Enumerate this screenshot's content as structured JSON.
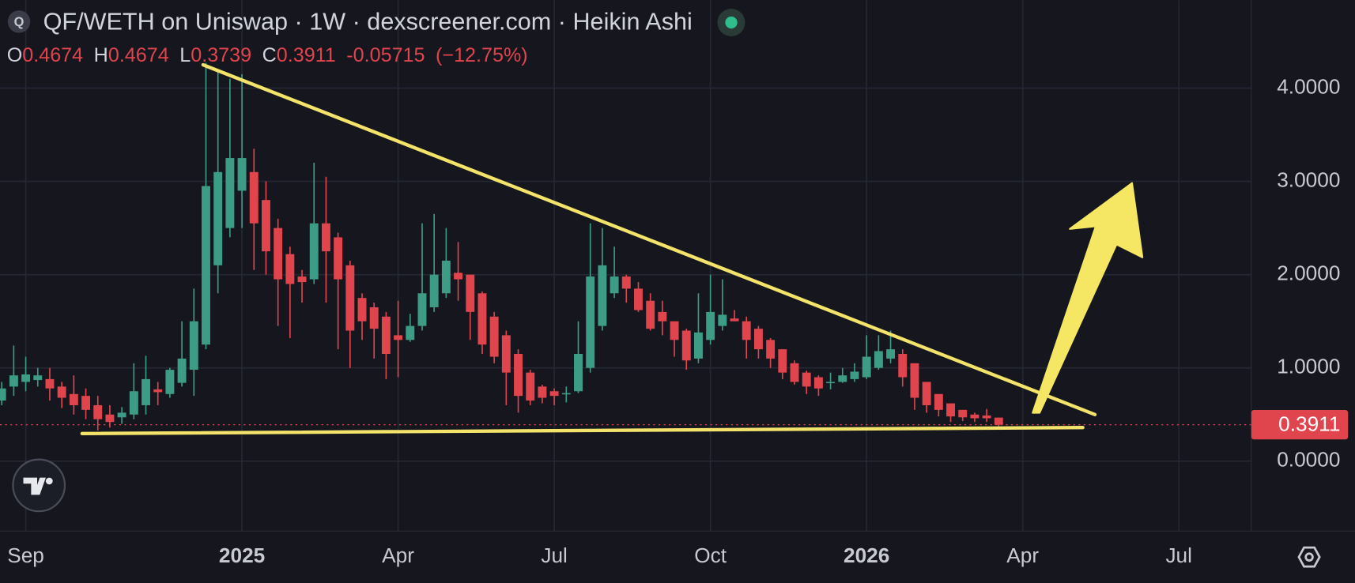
{
  "chart_data": {
    "type": "candlestick",
    "title": "QF/WETH on Uniswap · 1W · dexscreener.com · Heikin Ashi",
    "symbol_icon": "Q",
    "ohlc_labels": [
      "O",
      "H",
      "L",
      "C"
    ],
    "change": -0.05715,
    "change_percent": "(−12.75%)",
    "categories": [
      null,
      null,
      "Sep",
      null,
      null,
      null,
      null,
      null,
      null,
      null,
      null,
      null,
      null,
      null,
      null,
      null,
      null,
      null,
      null,
      null,
      "2025",
      null,
      null,
      null,
      null,
      null,
      null,
      null,
      null,
      null,
      null,
      null,
      null,
      "Apr",
      null,
      null,
      null,
      null,
      null,
      null,
      null,
      null,
      null,
      null,
      null,
      null,
      "Jul",
      null,
      null,
      null,
      null,
      null,
      null,
      null,
      null,
      null,
      null,
      null,
      null,
      "Oct",
      null,
      null,
      null,
      null,
      null,
      null,
      null,
      null,
      null,
      null,
      null,
      null,
      "2026",
      null,
      null,
      null,
      null,
      null,
      null,
      null,
      null,
      null,
      null,
      null,
      null,
      "Apr",
      null,
      null,
      null,
      null,
      null,
      null,
      null,
      null,
      null,
      null,
      null,
      null,
      "Jul",
      null,
      null,
      null,
      null,
      null
    ],
    "open": [
      0.65,
      0.8,
      0.85,
      0.87,
      0.88,
      0.8,
      0.72,
      0.7,
      0.6,
      0.5,
      0.47,
      0.5,
      0.6,
      0.77,
      0.72,
      0.84,
      0.98,
      1.25,
      2.1,
      2.5,
      2.9,
      3.1,
      2.8,
      2.5,
      2.22,
      1.98,
      1.95,
      2.55,
      2.4,
      2.1,
      1.75,
      1.65,
      1.55,
      1.35,
      1.3,
      1.45,
      1.65,
      1.8,
      2.02,
      2.0,
      1.8,
      1.55,
      1.35,
      1.15,
      0.95,
      0.8,
      0.75,
      0.72,
      0.75,
      1.0,
      1.45,
      1.8,
      1.98,
      1.85,
      1.72,
      1.6,
      1.5,
      1.4,
      1.1,
      1.3,
      1.45,
      1.53,
      1.5,
      1.42,
      1.3,
      1.2,
      1.05,
      0.95,
      0.9,
      0.84,
      0.85,
      0.88,
      0.9,
      1.0,
      1.1,
      1.15,
      1.05,
      0.85,
      0.72,
      0.62,
      0.55,
      0.5,
      0.49,
      0.4674,
      null,
      null,
      null,
      null,
      null,
      null,
      null,
      null,
      null,
      null,
      null,
      null,
      null,
      null,
      null,
      null,
      null,
      null,
      null,
      null
    ],
    "high": [
      0.85,
      1.24,
      1.12,
      1.0,
      1.0,
      0.85,
      0.92,
      0.78,
      0.7,
      0.6,
      0.58,
      1.05,
      1.13,
      0.85,
      1.0,
      1.5,
      1.85,
      4.27,
      4.2,
      4.1,
      4.15,
      3.35,
      3.0,
      2.6,
      2.3,
      2.05,
      3.2,
      3.05,
      2.45,
      2.15,
      1.8,
      1.7,
      1.6,
      1.72,
      1.58,
      2.55,
      2.65,
      2.5,
      2.35,
      2.0,
      1.82,
      1.6,
      1.4,
      1.2,
      0.98,
      0.82,
      0.78,
      0.8,
      1.5,
      2.55,
      2.5,
      2.3,
      2.0,
      1.92,
      1.8,
      1.72,
      1.5,
      1.42,
      1.8,
      2.0,
      1.95,
      1.62,
      1.55,
      1.45,
      1.32,
      1.2,
      1.08,
      0.97,
      0.92,
      0.95,
      1.0,
      1.05,
      1.35,
      1.35,
      1.4,
      1.2,
      1.05,
      0.85,
      0.72,
      0.62,
      0.55,
      0.52,
      0.56,
      0.4674,
      null,
      null,
      null,
      null,
      null,
      null,
      null,
      null,
      null,
      null,
      null,
      null,
      null,
      null,
      null,
      null,
      null,
      null,
      null,
      null
    ],
    "low": [
      0.6,
      0.7,
      0.75,
      0.8,
      0.65,
      0.57,
      0.5,
      0.45,
      0.33,
      0.36,
      0.4,
      0.45,
      0.5,
      0.6,
      0.68,
      0.8,
      0.7,
      1.2,
      1.8,
      2.4,
      2.5,
      2.05,
      2.0,
      1.45,
      1.32,
      1.7,
      1.9,
      1.7,
      1.2,
      1.0,
      1.3,
      1.1,
      0.88,
      0.9,
      1.28,
      1.4,
      1.6,
      1.75,
      1.72,
      1.3,
      1.15,
      1.05,
      0.6,
      0.52,
      0.6,
      0.62,
      0.6,
      0.63,
      0.73,
      0.95,
      1.4,
      1.75,
      1.7,
      1.6,
      1.4,
      1.35,
      1.12,
      0.98,
      1.05,
      1.25,
      1.4,
      1.5,
      1.1,
      1.1,
      1.0,
      0.88,
      0.82,
      0.72,
      0.7,
      0.77,
      0.84,
      0.85,
      0.88,
      0.98,
      1.05,
      0.8,
      0.55,
      0.52,
      0.48,
      0.42,
      0.43,
      0.42,
      0.42,
      0.3739,
      null,
      null,
      null,
      null,
      null,
      null,
      null,
      null,
      null,
      null,
      null,
      null,
      null,
      null,
      null,
      null,
      null,
      null,
      null,
      null
    ],
    "close": [
      0.78,
      0.92,
      0.93,
      0.92,
      0.78,
      0.68,
      0.6,
      0.55,
      0.45,
      0.42,
      0.52,
      0.75,
      0.88,
      0.74,
      0.98,
      1.1,
      1.5,
      2.95,
      3.1,
      3.25,
      3.25,
      2.55,
      2.25,
      1.95,
      1.9,
      1.92,
      2.55,
      2.25,
      1.95,
      1.4,
      1.5,
      1.42,
      1.15,
      1.3,
      1.45,
      1.8,
      2.0,
      2.15,
      1.95,
      1.6,
      1.25,
      1.12,
      0.95,
      0.7,
      0.65,
      0.68,
      0.7,
      0.73,
      1.15,
      1.98,
      2.1,
      1.98,
      1.85,
      1.62,
      1.42,
      1.5,
      1.3,
      1.08,
      1.38,
      1.6,
      1.57,
      1.5,
      1.3,
      1.2,
      1.1,
      0.95,
      0.85,
      0.8,
      0.78,
      0.85,
      0.92,
      0.96,
      1.12,
      1.18,
      1.2,
      0.9,
      0.68,
      0.6,
      0.55,
      0.48,
      0.47,
      0.46,
      0.46,
      0.3911,
      null,
      null,
      null,
      null,
      null,
      null,
      null,
      null,
      null,
      null,
      null,
      null,
      null,
      null,
      null,
      null,
      null,
      null,
      null,
      null
    ],
    "up_color": "#3d9c85",
    "down_color": "#e0444c",
    "ylim": [
      -0.75,
      4.944
    ],
    "yticks": [
      {
        "value": 0,
        "label": "0.0000"
      },
      {
        "value": 1,
        "label": "1.0000"
      },
      {
        "value": 2,
        "label": "2.0000"
      },
      {
        "value": 3,
        "label": "3.0000"
      },
      {
        "value": 4,
        "label": "4.0000"
      }
    ],
    "grid": true
  }
}
